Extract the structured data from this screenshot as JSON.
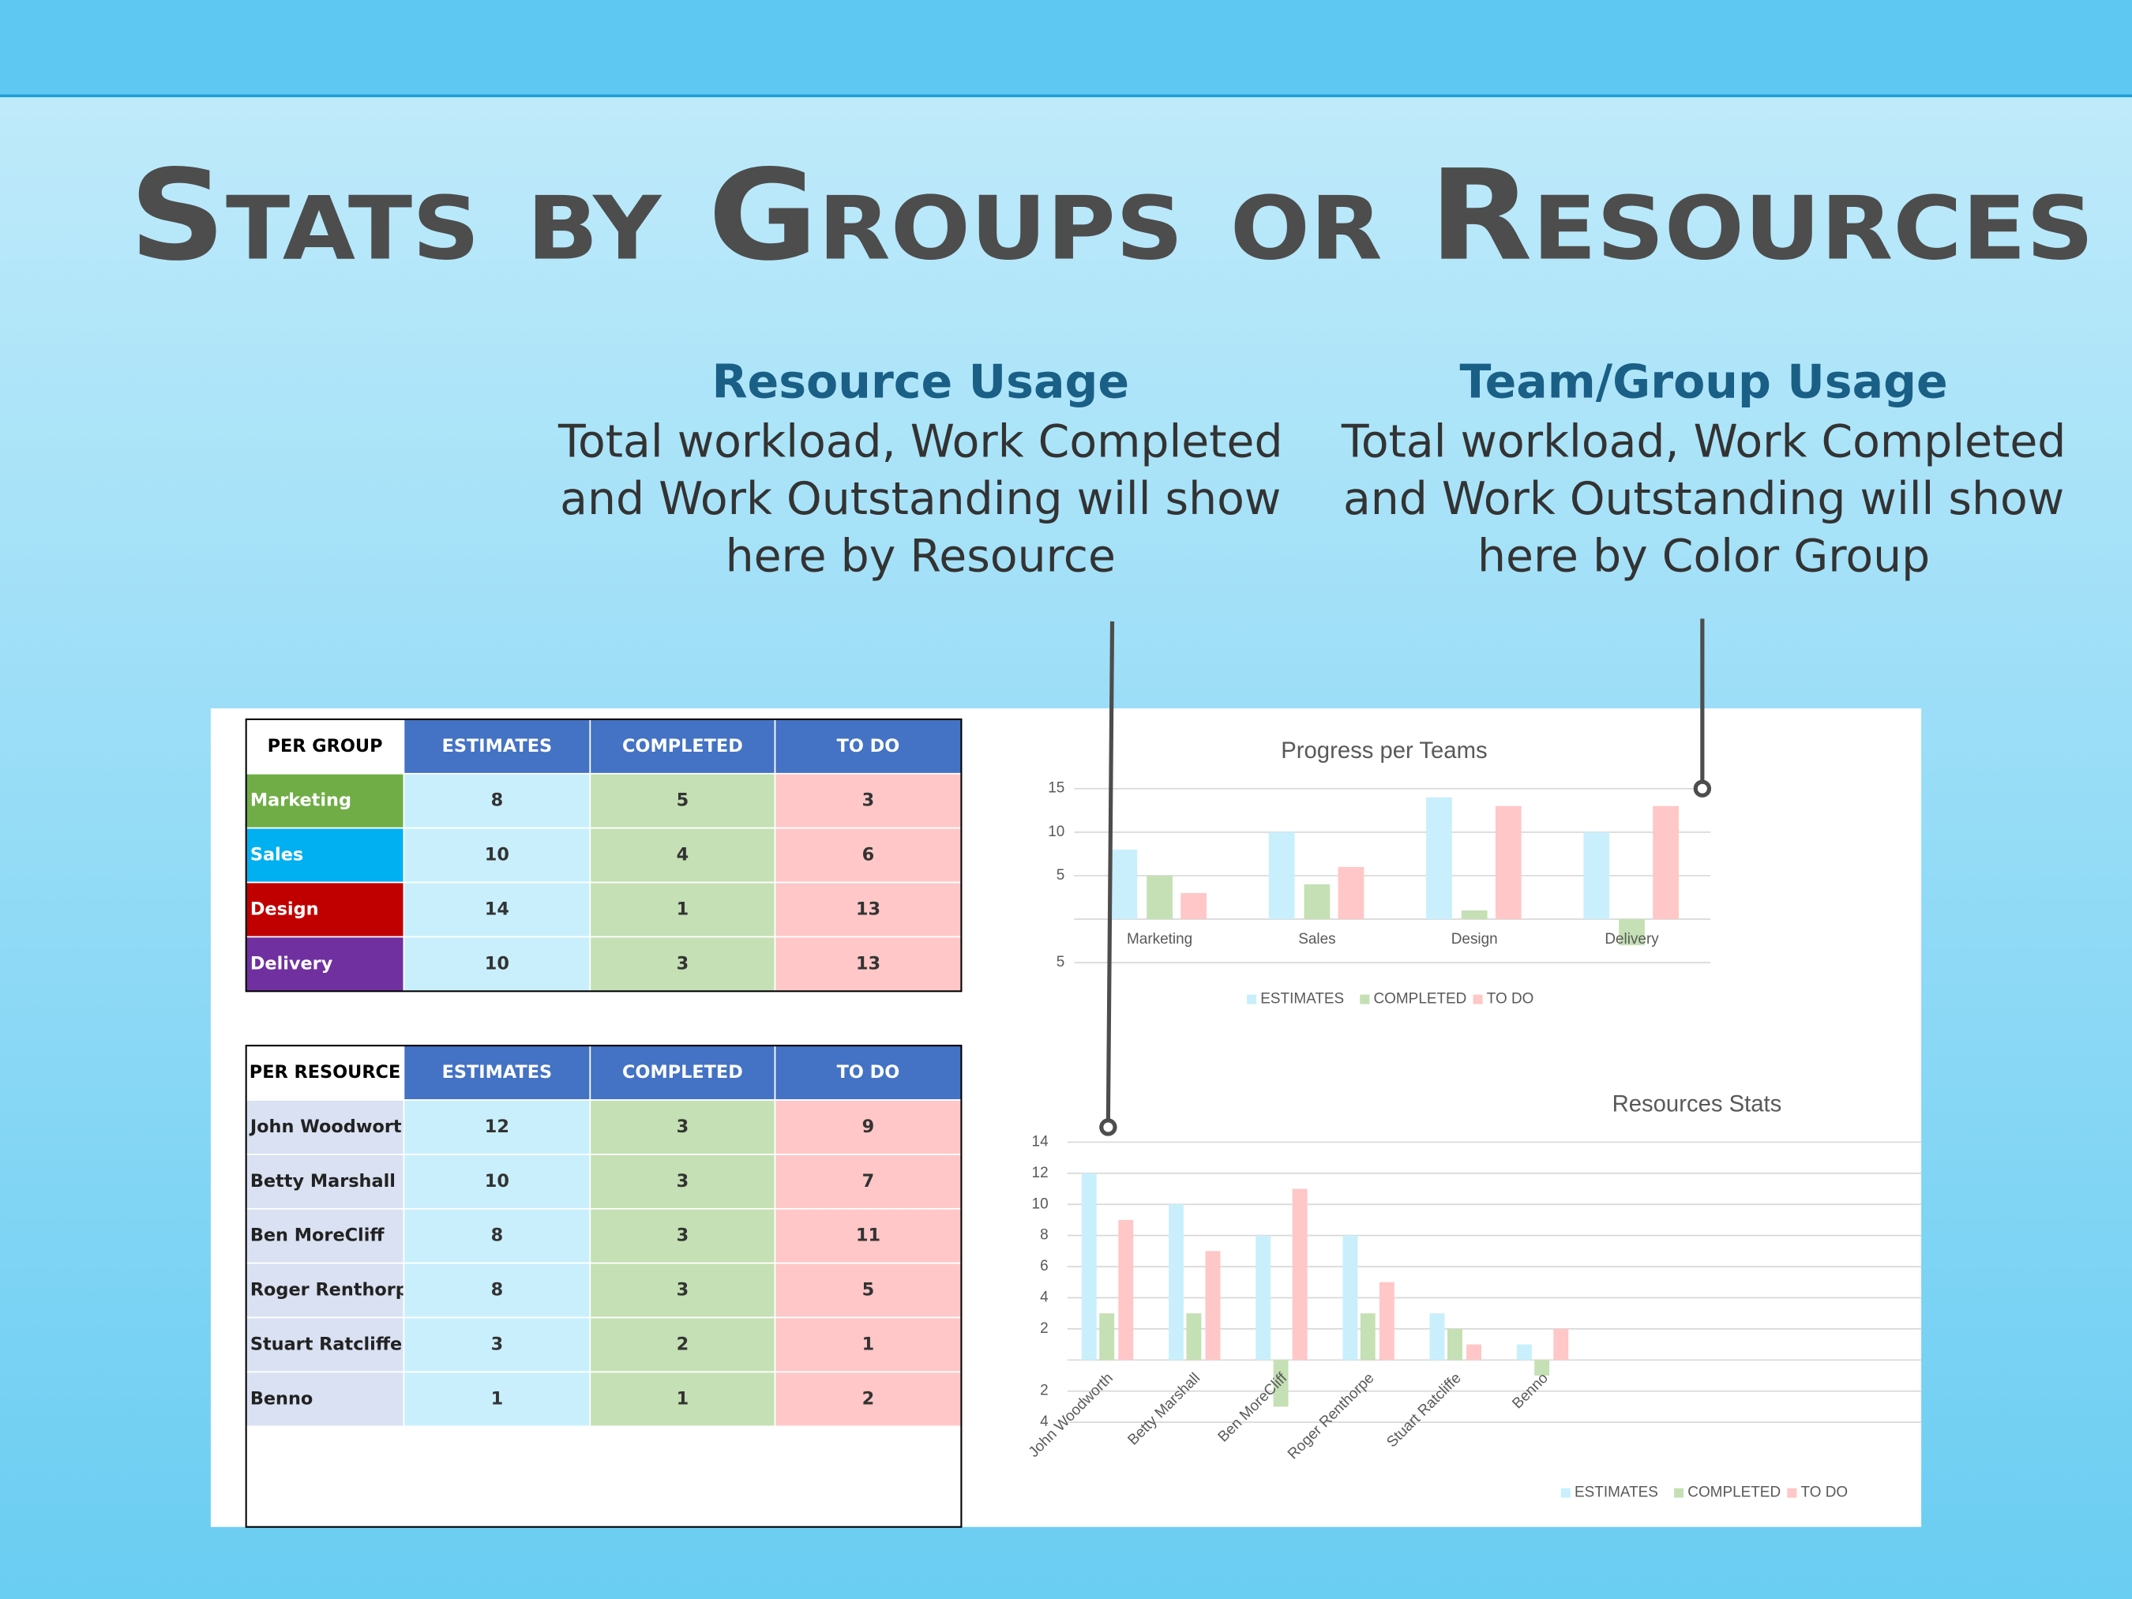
{
  "header": {
    "title": "Stats by Groups or Resources"
  },
  "callouts": [
    {
      "heading": "Resource Usage",
      "lines": [
        "Total workload, Work Completed",
        "and Work Outstanding will show",
        "here by Resource"
      ]
    },
    {
      "heading": "Team/Group Usage",
      "lines": [
        "Total workload, Work Completed",
        "and Work Outstanding will show",
        "here by Color Group"
      ]
    }
  ],
  "tables": [
    {
      "columns": [
        "PER GROUP",
        "ESTIMATES",
        "COMPLETED",
        "TO DO"
      ],
      "header_color": "#4472c4",
      "column_colors": [
        "#c9effc",
        "#c5e0b4",
        "#ffc7c7"
      ],
      "rows": [
        {
          "label": "Marketing",
          "color": "#70ad47",
          "cells": [
            8,
            5,
            3
          ]
        },
        {
          "label": "Sales",
          "color": "#00b0f0",
          "cells": [
            10,
            4,
            6
          ]
        },
        {
          "label": "Design",
          "color": "#c00000",
          "cells": [
            14,
            1,
            13
          ]
        },
        {
          "label": "Delivery",
          "color": "#7030a0",
          "cells": [
            10,
            3,
            13
          ]
        }
      ]
    },
    {
      "columns": [
        "PER RESOURCE",
        "ESTIMATES",
        "COMPLETED",
        "TO DO"
      ],
      "header_color": "#4472c4",
      "column_colors": [
        "#c9effc",
        "#c5e0b4",
        "#ffc7c7"
      ],
      "label_fill": "#d9e1f2",
      "rows": [
        {
          "label": "John Woodworth",
          "cells": [
            12,
            3,
            9
          ]
        },
        {
          "label": "Betty Marshall",
          "cells": [
            10,
            3,
            7
          ]
        },
        {
          "label": "Ben MoreCliff",
          "cells": [
            8,
            3,
            11
          ]
        },
        {
          "label": "Roger Renthorpe",
          "cells": [
            8,
            3,
            5
          ]
        },
        {
          "label": "Stuart Ratcliffe",
          "cells": [
            3,
            2,
            1
          ]
        },
        {
          "label": "Benno",
          "cells": [
            1,
            1,
            2
          ]
        }
      ]
    }
  ],
  "chart_data": [
    {
      "type": "bar",
      "title": "Progress per Teams",
      "categories": [
        "Marketing",
        "Sales",
        "Design",
        "Delivery"
      ],
      "series": [
        {
          "name": "ESTIMATES",
          "color": "#c9effc",
          "values": [
            8,
            10,
            14,
            10
          ]
        },
        {
          "name": "COMPLETED",
          "color": "#c5e0b4",
          "values": [
            5,
            4,
            1,
            -3
          ]
        },
        {
          "name": "TO DO",
          "color": "#ffc7c7",
          "values": [
            3,
            6,
            13,
            13
          ]
        }
      ],
      "ylim": [
        -5,
        15
      ],
      "yticks": [
        {
          "value": -5,
          "label": "5"
        },
        5,
        10,
        15
      ],
      "grid": true,
      "legend": "bottom"
    },
    {
      "type": "bar",
      "title": "Resources Stats",
      "categories": [
        "John Woodworth",
        "Betty Marshall",
        "Ben MoreCliff",
        "Roger Renthorpe",
        "Stuart Ratcliffe",
        "Benno"
      ],
      "series": [
        {
          "name": "ESTIMATES",
          "color": "#c9effc",
          "values": [
            12,
            10,
            8,
            8,
            3,
            1
          ]
        },
        {
          "name": "COMPLETED",
          "color": "#c5e0b4",
          "values": [
            3,
            3,
            -3,
            3,
            2,
            -1
          ]
        },
        {
          "name": "TO DO",
          "color": "#ffc7c7",
          "values": [
            9,
            7,
            11,
            5,
            1,
            2
          ]
        }
      ],
      "ylim": [
        -4,
        14
      ],
      "yticks": [
        {
          "value": -4,
          "label": "4"
        },
        {
          "value": -2,
          "label": "2"
        },
        2,
        4,
        6,
        8,
        10,
        12,
        14
      ],
      "grid": true,
      "legend": "bottom right"
    }
  ]
}
